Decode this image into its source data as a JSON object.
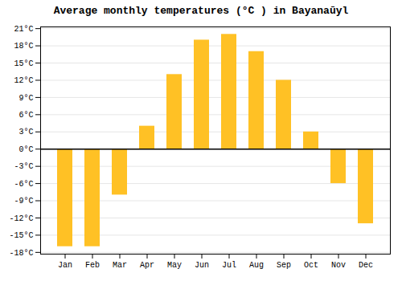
{
  "chart_data": {
    "type": "bar",
    "title": "Average monthly temperatures (°C ) in Bayanaūyl",
    "categories": [
      "Jan",
      "Feb",
      "Mar",
      "Apr",
      "May",
      "Jun",
      "Jul",
      "Aug",
      "Sep",
      "Oct",
      "Nov",
      "Dec"
    ],
    "values": [
      -17,
      -17,
      -8,
      4,
      13,
      19,
      20,
      17,
      12,
      3,
      -6,
      -13
    ],
    "color": "#FFC125",
    "ylim": [
      -18.3,
      21.3
    ],
    "yticks": [
      {
        "value": -18,
        "label": "-18°C"
      },
      {
        "value": -15,
        "label": "-15°C"
      },
      {
        "value": -12,
        "label": "-12°C"
      },
      {
        "value": -9,
        "label": "-9°C"
      },
      {
        "value": -6,
        "label": "-6°C"
      },
      {
        "value": -3,
        "label": "-3°C"
      },
      {
        "value": 0,
        "label": "0°C"
      },
      {
        "value": 3,
        "label": "3°C"
      },
      {
        "value": 6,
        "label": "6°C"
      },
      {
        "value": 9,
        "label": "9°C"
      },
      {
        "value": 12,
        "label": "12°C"
      },
      {
        "value": 15,
        "label": "15°C"
      },
      {
        "value": 18,
        "label": "18°C"
      },
      {
        "value": 21,
        "label": "21°C"
      }
    ],
    "grid": true
  }
}
